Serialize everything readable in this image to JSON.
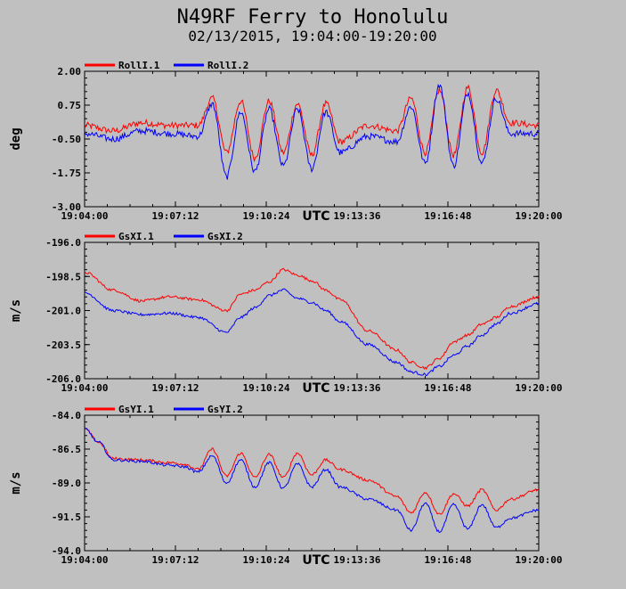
{
  "title": "N49RF Ferry to Honolulu",
  "subtitle": "02/13/2015, 19:04:00-19:20:00",
  "colors": {
    "series1": "#ff0000",
    "series2": "#0000ff",
    "background": "#c0c0c0",
    "plot_bg": "#c0c0c0"
  },
  "chart_data": [
    {
      "type": "line",
      "ylabel": "deg",
      "xlabel": "UTC",
      "xlim": [
        "19:04:00",
        "19:20:00"
      ],
      "xticks": [
        "19:04:00",
        "19:07:12",
        "19:10:24",
        "19:13:36",
        "19:16:48",
        "19:20:00"
      ],
      "ylim": [
        -3.0,
        2.0
      ],
      "yticks": [
        "2.00",
        "0.75",
        "-0.50",
        "-1.75",
        "-3.00"
      ],
      "legend_position": "top-left",
      "series": [
        {
          "name": "RollI.1",
          "color": "#ff0000",
          "times": [
            "19:04:00",
            "19:05:00",
            "19:06:00",
            "19:07:00",
            "19:08:00",
            "19:08:30",
            "19:09:00",
            "19:09:30",
            "19:10:00",
            "19:10:30",
            "19:11:00",
            "19:11:30",
            "19:12:00",
            "19:12:30",
            "19:13:00",
            "19:14:00",
            "19:15:00",
            "19:15:30",
            "19:16:00",
            "19:16:30",
            "19:17:00",
            "19:17:30",
            "19:18:00",
            "19:18:30",
            "19:19:00",
            "19:20:00"
          ],
          "values": [
            0.0,
            -0.2,
            0.1,
            0.0,
            0.0,
            1.0,
            -1.0,
            0.9,
            -1.2,
            0.9,
            -1.0,
            0.8,
            -1.1,
            0.8,
            -0.6,
            0.0,
            -0.2,
            1.0,
            -1.0,
            1.3,
            -1.1,
            1.4,
            -1.0,
            1.3,
            0.1,
            0.0
          ]
        },
        {
          "name": "RollI.2",
          "color": "#0000ff",
          "times": [
            "19:04:00",
            "19:05:00",
            "19:06:00",
            "19:07:00",
            "19:08:00",
            "19:08:30",
            "19:09:00",
            "19:09:30",
            "19:10:00",
            "19:10:30",
            "19:11:00",
            "19:11:30",
            "19:12:00",
            "19:12:30",
            "19:13:00",
            "19:14:00",
            "19:15:00",
            "19:15:30",
            "19:16:00",
            "19:16:30",
            "19:17:00",
            "19:17:30",
            "19:18:00",
            "19:18:30",
            "19:19:00",
            "19:20:00"
          ],
          "values": [
            -0.3,
            -0.5,
            -0.2,
            -0.3,
            -0.4,
            0.8,
            -1.9,
            0.5,
            -1.7,
            0.6,
            -1.5,
            0.6,
            -1.6,
            0.5,
            -1.0,
            -0.4,
            -0.6,
            0.7,
            -1.4,
            1.5,
            -1.5,
            1.2,
            -1.4,
            1.0,
            -0.3,
            -0.3
          ]
        }
      ]
    },
    {
      "type": "line",
      "ylabel": "m/s",
      "xlabel": "UTC",
      "xlim": [
        "19:04:00",
        "19:20:00"
      ],
      "xticks": [
        "19:04:00",
        "19:07:12",
        "19:10:24",
        "19:13:36",
        "19:16:48",
        "19:20:00"
      ],
      "ylim": [
        -206.0,
        -196.0
      ],
      "yticks": [
        "-196.0",
        "-198.5",
        "-201.0",
        "-203.5",
        "-206.0"
      ],
      "legend_position": "top-left",
      "series": [
        {
          "name": "GsXI.1",
          "color": "#ff0000",
          "times": [
            "19:04:00",
            "19:05:00",
            "19:06:00",
            "19:07:00",
            "19:08:00",
            "19:09:00",
            "19:09:30",
            "19:10:00",
            "19:10:30",
            "19:11:00",
            "19:11:30",
            "19:12:00",
            "19:12:30",
            "19:13:00",
            "19:14:00",
            "19:15:00",
            "19:15:30",
            "19:16:00",
            "19:16:30",
            "19:17:00",
            "19:17:30",
            "19:18:00",
            "19:18:30",
            "19:19:00",
            "19:20:00"
          ],
          "values": [
            -198.2,
            -199.5,
            -200.3,
            -200.0,
            -200.2,
            -201.0,
            -199.8,
            -199.5,
            -198.9,
            -198.0,
            -198.4,
            -198.8,
            -199.5,
            -200.2,
            -202.5,
            -203.9,
            -204.8,
            -205.2,
            -204.5,
            -203.3,
            -202.8,
            -202.0,
            -201.5,
            -200.7,
            -200.0
          ]
        },
        {
          "name": "GsXI.2",
          "color": "#0000ff",
          "times": [
            "19:04:00",
            "19:05:00",
            "19:06:00",
            "19:07:00",
            "19:08:00",
            "19:09:00",
            "19:09:30",
            "19:10:00",
            "19:10:30",
            "19:11:00",
            "19:11:30",
            "19:12:00",
            "19:12:30",
            "19:13:00",
            "19:14:00",
            "19:15:00",
            "19:15:30",
            "19:16:00",
            "19:16:30",
            "19:17:00",
            "19:17:30",
            "19:18:00",
            "19:18:30",
            "19:19:00",
            "19:20:00"
          ],
          "values": [
            -199.7,
            -201.0,
            -201.3,
            -201.2,
            -201.5,
            -202.6,
            -201.5,
            -200.8,
            -199.9,
            -199.5,
            -200.1,
            -200.4,
            -201.0,
            -201.8,
            -203.5,
            -204.8,
            -205.5,
            -205.7,
            -205.1,
            -204.3,
            -203.6,
            -202.8,
            -202.0,
            -201.2,
            -200.5
          ]
        }
      ]
    },
    {
      "type": "line",
      "ylabel": "m/s",
      "xlabel": "UTC",
      "xlim": [
        "19:04:00",
        "19:20:00"
      ],
      "xticks": [
        "19:04:00",
        "19:07:12",
        "19:10:24",
        "19:13:36",
        "19:16:48",
        "19:20:00"
      ],
      "ylim": [
        -94.0,
        -84.0
      ],
      "yticks": [
        "-84.0",
        "-86.5",
        "-89.0",
        "-91.5",
        "-94.0"
      ],
      "legend_position": "top-left",
      "series": [
        {
          "name": "GsYI.1",
          "color": "#ff0000",
          "times": [
            "19:04:00",
            "19:04:30",
            "19:05:00",
            "19:06:00",
            "19:07:00",
            "19:07:30",
            "19:08:00",
            "19:08:30",
            "19:09:00",
            "19:09:30",
            "19:10:00",
            "19:10:30",
            "19:11:00",
            "19:11:30",
            "19:12:00",
            "19:12:30",
            "19:13:00",
            "19:14:00",
            "19:15:00",
            "19:15:30",
            "19:16:00",
            "19:16:30",
            "19:17:00",
            "19:17:30",
            "19:18:00",
            "19:18:30",
            "19:19:00",
            "19:20:00"
          ],
          "values": [
            -85.0,
            -86.0,
            -87.2,
            -87.3,
            -87.5,
            -87.6,
            -88.0,
            -86.5,
            -88.5,
            -86.8,
            -88.6,
            -86.9,
            -88.6,
            -86.8,
            -88.4,
            -87.3,
            -88.0,
            -88.8,
            -90.0,
            -91.2,
            -89.7,
            -91.3,
            -89.8,
            -90.7,
            -89.5,
            -91.0,
            -90.2,
            -89.5
          ]
        },
        {
          "name": "GsYI.2",
          "color": "#0000ff",
          "times": [
            "19:04:00",
            "19:04:30",
            "19:05:00",
            "19:06:00",
            "19:07:00",
            "19:07:30",
            "19:08:00",
            "19:08:30",
            "19:09:00",
            "19:09:30",
            "19:10:00",
            "19:10:30",
            "19:11:00",
            "19:11:30",
            "19:12:00",
            "19:12:30",
            "19:13:00",
            "19:14:00",
            "19:15:00",
            "19:15:30",
            "19:16:00",
            "19:16:30",
            "19:17:00",
            "19:17:30",
            "19:18:00",
            "19:18:30",
            "19:19:00",
            "19:20:00"
          ],
          "values": [
            -85.0,
            -86.0,
            -87.3,
            -87.4,
            -87.7,
            -87.8,
            -88.2,
            -87.0,
            -89.0,
            -87.3,
            -89.3,
            -87.5,
            -89.4,
            -87.6,
            -89.3,
            -88.0,
            -89.3,
            -90.2,
            -91.0,
            -92.5,
            -90.5,
            -92.6,
            -90.6,
            -92.4,
            -90.6,
            -92.3,
            -91.6,
            -91.0
          ]
        }
      ]
    }
  ]
}
